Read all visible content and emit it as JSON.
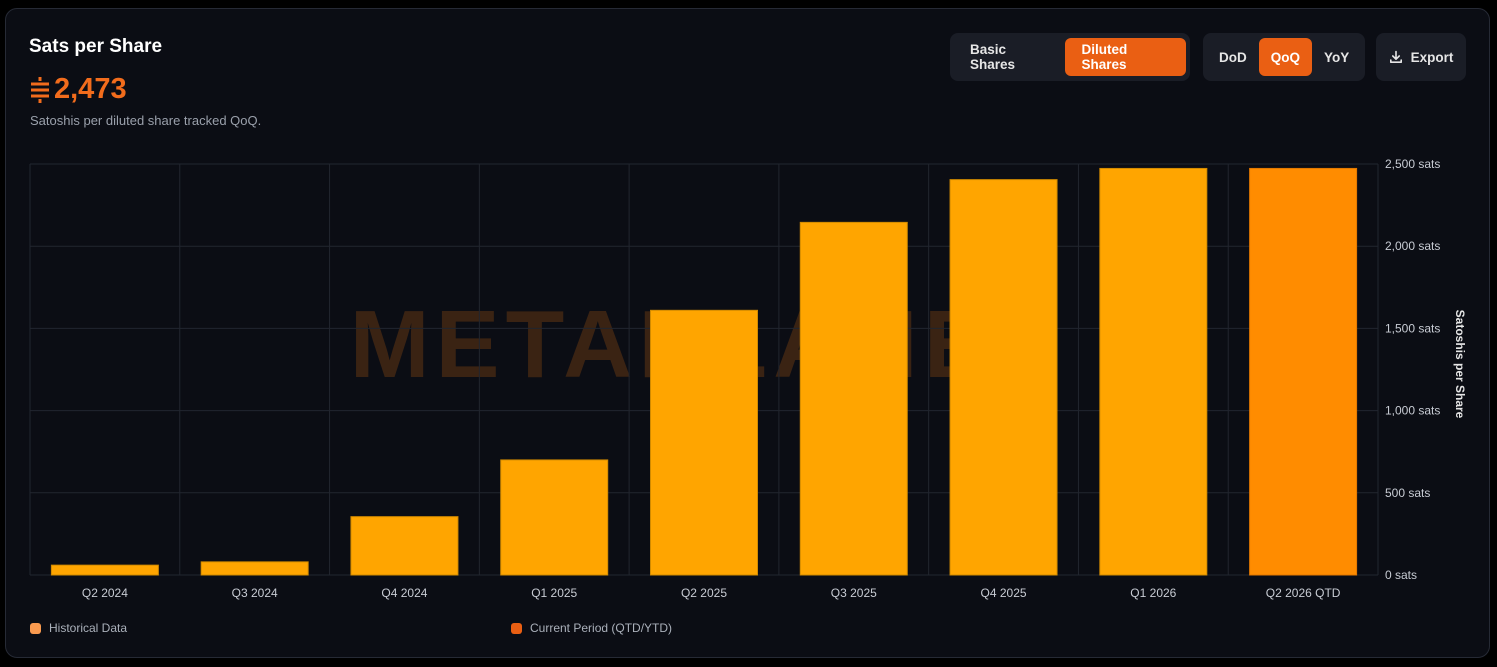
{
  "header": {
    "title": "Sats per Share",
    "value": "2,473",
    "subtitle": "Satoshis per diluted share tracked QoQ."
  },
  "share_toggle": {
    "options": [
      "Basic Shares",
      "Diluted Shares"
    ],
    "selected": "Diluted Shares"
  },
  "period_toggle": {
    "options": [
      "DoD",
      "QoQ",
      "YoY"
    ],
    "selected": "QoQ"
  },
  "export_label": "Export",
  "watermark": "METAPLANET",
  "colors": {
    "accent": "#ea5f13",
    "bar_historical": "#ffa500",
    "bar_current": "#ff8c00",
    "legend_historical": "#f99a4f",
    "legend_current": "#ea5f13"
  },
  "legend": {
    "historical": "Historical Data",
    "current": "Current Period (QTD/YTD)"
  },
  "chart_data": {
    "type": "bar",
    "categories": [
      "Q2 2024",
      "Q3 2024",
      "Q4 2024",
      "Q1 2025",
      "Q2 2025",
      "Q3 2025",
      "Q4 2025",
      "Q1 2026",
      "Q2 2026 QTD"
    ],
    "values": [
      60,
      80,
      355,
      700,
      1610,
      2145,
      2405,
      2473,
      2473
    ],
    "current_period_index": 8,
    "ylabel": "Satoshis per Share",
    "ylim": [
      0,
      2500
    ],
    "yticks": [
      0,
      500,
      1000,
      1500,
      2000,
      2500
    ],
    "ytick_labels": [
      "0 sats",
      "500 sats",
      "1,000 sats",
      "1,500 sats",
      "2,000 sats",
      "2,500 sats"
    ],
    "y_axis_position": "right",
    "grid": true,
    "legend_position": "bottom-left"
  }
}
